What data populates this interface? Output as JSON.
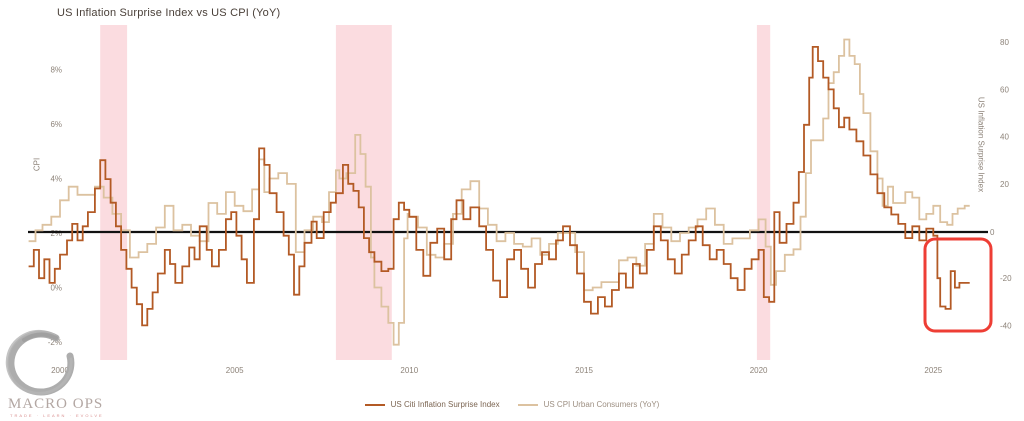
{
  "header": {
    "title": "US Inflation Surprise Index vs US CPI (YoY)"
  },
  "axes": {
    "left": {
      "title": "CPI",
      "ticks": [
        "8%",
        "6%",
        "4%",
        "2%",
        "0%",
        "-2%"
      ],
      "tick_values": [
        8,
        6,
        4,
        2,
        0,
        -2
      ]
    },
    "right": {
      "title": "US Inflation Surprise Index",
      "ticks": [
        "80",
        "60",
        "40",
        "20",
        "-20",
        "-40"
      ],
      "tick_values": [
        80,
        60,
        40,
        20,
        -20,
        -40
      ],
      "zero_label": "0"
    },
    "x": {
      "ticks": [
        "2000",
        "2005",
        "2010",
        "2015",
        "2020",
        "2025"
      ],
      "tick_values": [
        2000,
        2005,
        2010,
        2015,
        2020,
        2025
      ]
    }
  },
  "legend": [
    {
      "label": "US Citi Inflation Surprise Index",
      "color": "#b35a25"
    },
    {
      "label": "US CPI Urban Consumers (YoY)",
      "color": "#dcc2a0"
    }
  ],
  "logo": {
    "name": "MACRO OPS",
    "tagline": "TRADE · LEARN · EVOLVE"
  },
  "colors": {
    "surprise_line": "#b35a25",
    "cpi_line": "#dcc2a0",
    "recession_band": "#fbdce0",
    "zero_line": "#111111",
    "annotation_box": "#ee3e35",
    "tick_text": "#8d8379"
  },
  "chart_data": {
    "type": "line",
    "title": "US Inflation Surprise Index vs US CPI (YoY)",
    "x_range": [
      1999.05,
      2026.2
    ],
    "left_axis": {
      "label": "CPI",
      "units": "%",
      "ticks": [
        8,
        6,
        4,
        2,
        0,
        -2
      ]
    },
    "right_axis": {
      "label": "US Inflation Surprise Index",
      "ticks": [
        80,
        60,
        40,
        20,
        0,
        -20,
        -40
      ]
    },
    "grid": false,
    "legend_position": "bottom-center",
    "zero_reference_line": {
      "axis": "right",
      "value": 0,
      "label": "0"
    },
    "recession_bands": [
      [
        2001.15,
        2001.92
      ],
      [
        2007.9,
        2009.5
      ],
      [
        2019.95,
        2020.33
      ]
    ],
    "annotation_box": {
      "x": 925,
      "y": 239,
      "width": 66,
      "height": 92
    },
    "series": [
      {
        "name": "US CPI Urban Consumers (YoY)",
        "axis": "left",
        "style": "step",
        "color": "#dcc2a0",
        "points": [
          [
            1999.1,
            1.7
          ],
          [
            1999.3,
            2.1
          ],
          [
            1999.5,
            2.3
          ],
          [
            1999.75,
            2.6
          ],
          [
            2000.0,
            3.2
          ],
          [
            2000.25,
            3.7
          ],
          [
            2000.5,
            3.4
          ],
          [
            2000.75,
            3.4
          ],
          [
            2001.0,
            3.7
          ],
          [
            2001.25,
            3.3
          ],
          [
            2001.5,
            2.7
          ],
          [
            2001.75,
            2.1
          ],
          [
            2002.0,
            1.1
          ],
          [
            2002.25,
            1.3
          ],
          [
            2002.5,
            1.6
          ],
          [
            2002.75,
            2.2
          ],
          [
            2003.0,
            3.0
          ],
          [
            2003.25,
            2.1
          ],
          [
            2003.5,
            2.3
          ],
          [
            2003.75,
            1.9
          ],
          [
            2004.0,
            1.7
          ],
          [
            2004.25,
            3.1
          ],
          [
            2004.5,
            2.7
          ],
          [
            2004.75,
            3.5
          ],
          [
            2005.0,
            3.0
          ],
          [
            2005.25,
            2.8
          ],
          [
            2005.5,
            3.6
          ],
          [
            2005.7,
            4.7
          ],
          [
            2005.85,
            3.5
          ],
          [
            2006.0,
            4.0
          ],
          [
            2006.25,
            4.2
          ],
          [
            2006.5,
            3.8
          ],
          [
            2006.75,
            1.3
          ],
          [
            2007.0,
            2.1
          ],
          [
            2007.25,
            2.6
          ],
          [
            2007.5,
            2.4
          ],
          [
            2007.7,
            3.5
          ],
          [
            2007.9,
            4.3
          ],
          [
            2008.0,
            4.0
          ],
          [
            2008.2,
            4.2
          ],
          [
            2008.45,
            5.6
          ],
          [
            2008.6,
            4.9
          ],
          [
            2008.75,
            3.7
          ],
          [
            2008.9,
            1.1
          ],
          [
            2009.0,
            0.0
          ],
          [
            2009.2,
            -0.7
          ],
          [
            2009.4,
            -1.3
          ],
          [
            2009.55,
            -2.1
          ],
          [
            2009.7,
            -1.3
          ],
          [
            2009.85,
            1.8
          ],
          [
            2009.95,
            2.7
          ],
          [
            2010.0,
            2.6
          ],
          [
            2010.25,
            2.2
          ],
          [
            2010.5,
            1.2
          ],
          [
            2010.75,
            1.1
          ],
          [
            2011.0,
            1.6
          ],
          [
            2011.25,
            2.7
          ],
          [
            2011.5,
            3.6
          ],
          [
            2011.75,
            3.9
          ],
          [
            2012.0,
            2.9
          ],
          [
            2012.25,
            2.3
          ],
          [
            2012.5,
            1.7
          ],
          [
            2012.75,
            2.0
          ],
          [
            2013.0,
            1.6
          ],
          [
            2013.25,
            1.5
          ],
          [
            2013.5,
            1.8
          ],
          [
            2013.75,
            1.2
          ],
          [
            2014.0,
            1.6
          ],
          [
            2014.25,
            2.0
          ],
          [
            2014.5,
            2.0
          ],
          [
            2014.75,
            1.3
          ],
          [
            2015.0,
            -0.1
          ],
          [
            2015.25,
            0.0
          ],
          [
            2015.5,
            0.2
          ],
          [
            2015.75,
            0.2
          ],
          [
            2016.0,
            1.0
          ],
          [
            2016.25,
            1.1
          ],
          [
            2016.5,
            0.8
          ],
          [
            2016.75,
            1.6
          ],
          [
            2017.0,
            2.7
          ],
          [
            2017.25,
            2.2
          ],
          [
            2017.5,
            1.7
          ],
          [
            2017.75,
            2.0
          ],
          [
            2018.0,
            2.2
          ],
          [
            2018.25,
            2.5
          ],
          [
            2018.5,
            2.9
          ],
          [
            2018.75,
            2.3
          ],
          [
            2019.0,
            1.6
          ],
          [
            2019.25,
            1.8
          ],
          [
            2019.5,
            1.8
          ],
          [
            2019.75,
            2.1
          ],
          [
            2020.0,
            2.5
          ],
          [
            2020.2,
            1.5
          ],
          [
            2020.35,
            0.1
          ],
          [
            2020.5,
            0.6
          ],
          [
            2020.75,
            1.2
          ],
          [
            2021.0,
            1.4
          ],
          [
            2021.2,
            2.6
          ],
          [
            2021.35,
            4.2
          ],
          [
            2021.5,
            5.4
          ],
          [
            2021.7,
            5.4
          ],
          [
            2021.85,
            6.2
          ],
          [
            2022.0,
            7.5
          ],
          [
            2022.15,
            7.9
          ],
          [
            2022.3,
            8.5
          ],
          [
            2022.45,
            9.1
          ],
          [
            2022.6,
            8.5
          ],
          [
            2022.75,
            8.2
          ],
          [
            2022.9,
            7.1
          ],
          [
            2023.0,
            6.4
          ],
          [
            2023.2,
            5.0
          ],
          [
            2023.4,
            4.0
          ],
          [
            2023.55,
            3.0
          ],
          [
            2023.7,
            3.7
          ],
          [
            2023.85,
            3.1
          ],
          [
            2024.0,
            3.1
          ],
          [
            2024.2,
            3.5
          ],
          [
            2024.4,
            3.3
          ],
          [
            2024.6,
            2.5
          ],
          [
            2024.8,
            2.7
          ],
          [
            2025.0,
            3.0
          ],
          [
            2025.2,
            2.4
          ],
          [
            2025.4,
            2.3
          ],
          [
            2025.55,
            2.7
          ],
          [
            2025.7,
            2.9
          ],
          [
            2025.9,
            3.0
          ]
        ]
      },
      {
        "name": "US Citi Inflation Surprise Index",
        "axis": "right",
        "style": "step",
        "color": "#b35a25",
        "points": [
          [
            1999.1,
            -15
          ],
          [
            1999.25,
            -8
          ],
          [
            1999.4,
            -20
          ],
          [
            1999.55,
            -12
          ],
          [
            1999.7,
            -22
          ],
          [
            1999.85,
            -16
          ],
          [
            2000.0,
            -10
          ],
          [
            2000.2,
            -4
          ],
          [
            2000.35,
            3
          ],
          [
            2000.5,
            -4
          ],
          [
            2000.65,
            2
          ],
          [
            2000.8,
            8
          ],
          [
            2001.0,
            18
          ],
          [
            2001.15,
            30
          ],
          [
            2001.3,
            22
          ],
          [
            2001.45,
            12
          ],
          [
            2001.6,
            2
          ],
          [
            2001.75,
            -8
          ],
          [
            2001.9,
            -16
          ],
          [
            2002.05,
            -24
          ],
          [
            2002.2,
            -31
          ],
          [
            2002.35,
            -40
          ],
          [
            2002.5,
            -33
          ],
          [
            2002.65,
            -26
          ],
          [
            2002.8,
            -18
          ],
          [
            2003.0,
            -8
          ],
          [
            2003.15,
            -14
          ],
          [
            2003.3,
            -22
          ],
          [
            2003.5,
            -15
          ],
          [
            2003.7,
            -7
          ],
          [
            2003.85,
            -12
          ],
          [
            2004.0,
            2
          ],
          [
            2004.2,
            -8
          ],
          [
            2004.35,
            -15
          ],
          [
            2004.55,
            -8
          ],
          [
            2004.75,
            5
          ],
          [
            2004.9,
            8
          ],
          [
            2005.05,
            -2
          ],
          [
            2005.2,
            -12
          ],
          [
            2005.35,
            -22
          ],
          [
            2005.55,
            5
          ],
          [
            2005.7,
            35
          ],
          [
            2005.85,
            28
          ],
          [
            2006.0,
            16
          ],
          [
            2006.2,
            8
          ],
          [
            2006.4,
            -2
          ],
          [
            2006.55,
            -10
          ],
          [
            2006.7,
            -27
          ],
          [
            2006.85,
            -15
          ],
          [
            2007.0,
            -5
          ],
          [
            2007.2,
            4
          ],
          [
            2007.35,
            -3
          ],
          [
            2007.55,
            8
          ],
          [
            2007.75,
            12
          ],
          [
            2007.9,
            16
          ],
          [
            2008.1,
            28
          ],
          [
            2008.25,
            20
          ],
          [
            2008.4,
            17
          ],
          [
            2008.55,
            10
          ],
          [
            2008.7,
            -3
          ],
          [
            2008.85,
            -9
          ],
          [
            2009.0,
            -13
          ],
          [
            2009.2,
            -17
          ],
          [
            2009.4,
            -16
          ],
          [
            2009.55,
            5
          ],
          [
            2009.7,
            12
          ],
          [
            2009.85,
            9
          ],
          [
            2010.0,
            6
          ],
          [
            2010.2,
            -8
          ],
          [
            2010.4,
            -19
          ],
          [
            2010.6,
            -5
          ],
          [
            2010.8,
            1
          ],
          [
            2011.0,
            -12
          ],
          [
            2011.2,
            5
          ],
          [
            2011.35,
            13
          ],
          [
            2011.55,
            5
          ],
          [
            2011.75,
            10
          ],
          [
            2012.0,
            2
          ],
          [
            2012.2,
            -8
          ],
          [
            2012.4,
            -21
          ],
          [
            2012.6,
            -28
          ],
          [
            2012.8,
            -12
          ],
          [
            2013.0,
            -8
          ],
          [
            2013.2,
            -16
          ],
          [
            2013.4,
            -24
          ],
          [
            2013.6,
            -14
          ],
          [
            2013.8,
            -9
          ],
          [
            2014.0,
            -12
          ],
          [
            2014.2,
            -4
          ],
          [
            2014.4,
            2
          ],
          [
            2014.6,
            -6
          ],
          [
            2014.8,
            -18
          ],
          [
            2015.0,
            -30
          ],
          [
            2015.2,
            -35
          ],
          [
            2015.4,
            -28
          ],
          [
            2015.6,
            -32
          ],
          [
            2015.8,
            -25
          ],
          [
            2016.0,
            -18
          ],
          [
            2016.2,
            -24
          ],
          [
            2016.4,
            -14
          ],
          [
            2016.6,
            -18
          ],
          [
            2016.8,
            -8
          ],
          [
            2017.0,
            2
          ],
          [
            2017.2,
            -4
          ],
          [
            2017.4,
            -12
          ],
          [
            2017.6,
            -18
          ],
          [
            2017.8,
            -10
          ],
          [
            2018.0,
            -4
          ],
          [
            2018.2,
            2
          ],
          [
            2018.4,
            -6
          ],
          [
            2018.6,
            -12
          ],
          [
            2018.8,
            -8
          ],
          [
            2019.0,
            -14
          ],
          [
            2019.2,
            -20
          ],
          [
            2019.4,
            -25
          ],
          [
            2019.6,
            -16
          ],
          [
            2019.8,
            -12
          ],
          [
            2020.0,
            -8
          ],
          [
            2020.15,
            -28
          ],
          [
            2020.3,
            -30
          ],
          [
            2020.45,
            8
          ],
          [
            2020.6,
            -5
          ],
          [
            2020.8,
            3
          ],
          [
            2021.0,
            12
          ],
          [
            2021.15,
            25
          ],
          [
            2021.3,
            45
          ],
          [
            2021.45,
            65
          ],
          [
            2021.55,
            78
          ],
          [
            2021.7,
            72
          ],
          [
            2021.85,
            65
          ],
          [
            2022.0,
            60
          ],
          [
            2022.15,
            52
          ],
          [
            2022.3,
            44
          ],
          [
            2022.45,
            48
          ],
          [
            2022.6,
            43
          ],
          [
            2022.8,
            38
          ],
          [
            2023.0,
            32
          ],
          [
            2023.2,
            24
          ],
          [
            2023.4,
            16
          ],
          [
            2023.6,
            10
          ],
          [
            2023.8,
            7
          ],
          [
            2024.0,
            3
          ],
          [
            2024.2,
            -3
          ],
          [
            2024.4,
            2
          ],
          [
            2024.6,
            -4
          ],
          [
            2024.8,
            1
          ],
          [
            2025.0,
            -2
          ],
          [
            2025.12,
            -20
          ],
          [
            2025.2,
            -32
          ],
          [
            2025.35,
            -33
          ],
          [
            2025.5,
            -17
          ],
          [
            2025.62,
            -24
          ],
          [
            2025.75,
            -22
          ],
          [
            2025.9,
            -22
          ]
        ]
      }
    ]
  }
}
